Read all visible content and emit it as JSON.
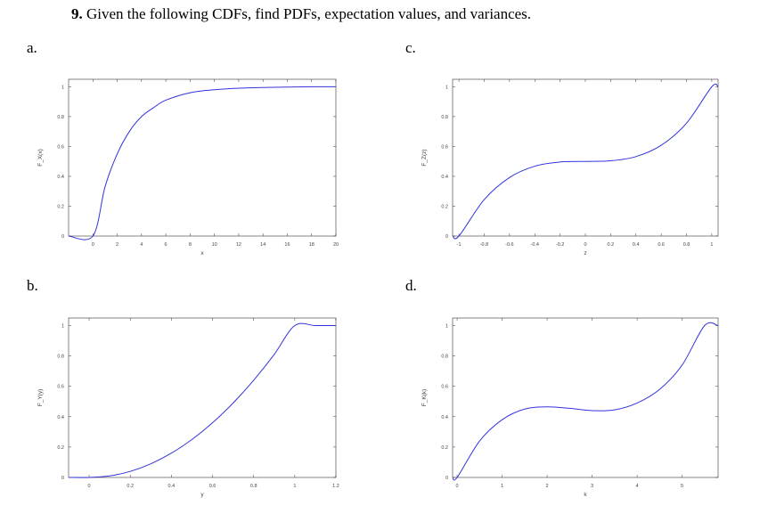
{
  "problem": {
    "number": "9.",
    "text": "Given the following CDFs, find PDFs, expectation values, and variances."
  },
  "colors": {
    "curve": "#3333dd",
    "axes": "#333333"
  },
  "panels": [
    {
      "id": "a",
      "label": "a."
    },
    {
      "id": "b",
      "label": "b."
    },
    {
      "id": "c",
      "label": "c."
    },
    {
      "id": "d",
      "label": "d."
    }
  ],
  "chart_data": [
    {
      "type": "line",
      "panel": "a",
      "xlabel": "x",
      "ylabel": "F_X(x)",
      "xlim": [
        -2,
        20
      ],
      "ylim": [
        0,
        1.05
      ],
      "xticks": [
        "0",
        "2",
        "4",
        "6",
        "8",
        "10",
        "12",
        "14",
        "16",
        "18",
        "20"
      ],
      "yticks": [
        "0",
        "0.2",
        "0.4",
        "0.6",
        "0.8",
        "1"
      ],
      "x": [
        -2,
        0,
        1,
        2,
        3,
        4,
        5,
        6,
        8,
        10,
        12,
        14,
        16,
        18,
        20
      ],
      "y": [
        0,
        0,
        0.33,
        0.55,
        0.7,
        0.8,
        0.86,
        0.91,
        0.96,
        0.98,
        0.99,
        0.995,
        0.998,
        1.0,
        1.0
      ]
    },
    {
      "type": "line",
      "panel": "b",
      "xlabel": "y",
      "ylabel": "F_Y(y)",
      "xlim": [
        -0.1,
        1.2
      ],
      "ylim": [
        0,
        1.05
      ],
      "xticks": [
        "0",
        "0.2",
        "0.4",
        "0.6",
        "0.8",
        "1",
        "1.2"
      ],
      "yticks": [
        "0",
        "0.2",
        "0.4",
        "0.6",
        "0.8",
        "1"
      ],
      "x": [
        -0.1,
        0,
        0.1,
        0.2,
        0.3,
        0.4,
        0.5,
        0.6,
        0.7,
        0.8,
        0.9,
        1.0,
        1.1,
        1.2
      ],
      "y": [
        0,
        0,
        0.01,
        0.04,
        0.09,
        0.16,
        0.25,
        0.36,
        0.49,
        0.64,
        0.81,
        1.0,
        1.0,
        1.0
      ]
    },
    {
      "type": "line",
      "panel": "c",
      "xlabel": "z",
      "ylabel": "F_Z(z)",
      "xlim": [
        -1.05,
        1.05
      ],
      "ylim": [
        0,
        1.05
      ],
      "xticks": [
        "-1",
        "-0.8",
        "-0.6",
        "-0.4",
        "-0.2",
        "0",
        "0.2",
        "0.4",
        "0.6",
        "0.8",
        "1"
      ],
      "yticks": [
        "0",
        "0.2",
        "0.4",
        "0.6",
        "0.8",
        "1"
      ],
      "x": [
        -1.05,
        -1.0,
        -0.8,
        -0.6,
        -0.4,
        -0.2,
        0,
        0.2,
        0.4,
        0.6,
        0.8,
        1.0,
        1.05
      ],
      "y": [
        0,
        0,
        0.244,
        0.392,
        0.468,
        0.496,
        0.5,
        0.504,
        0.532,
        0.608,
        0.756,
        1.0,
        1.0
      ]
    },
    {
      "type": "line",
      "panel": "d",
      "xlabel": "k",
      "ylabel": "F_K(k)",
      "xlim": [
        -0.1,
        5.8
      ],
      "ylim": [
        0,
        1.05
      ],
      "xticks": [
        "0",
        "1",
        "2",
        "3",
        "4",
        "5"
      ],
      "yticks": [
        "0",
        "0.2",
        "0.4",
        "0.6",
        "0.8",
        "1"
      ],
      "x": [
        -0.1,
        0,
        0.5,
        1.0,
        1.5,
        2.0,
        2.5,
        3.0,
        3.5,
        4.0,
        4.5,
        5.0,
        5.5,
        5.8
      ],
      "y": [
        0,
        0,
        0.24,
        0.38,
        0.45,
        0.465,
        0.455,
        0.44,
        0.445,
        0.49,
        0.58,
        0.74,
        1.0,
        1.0
      ]
    }
  ]
}
